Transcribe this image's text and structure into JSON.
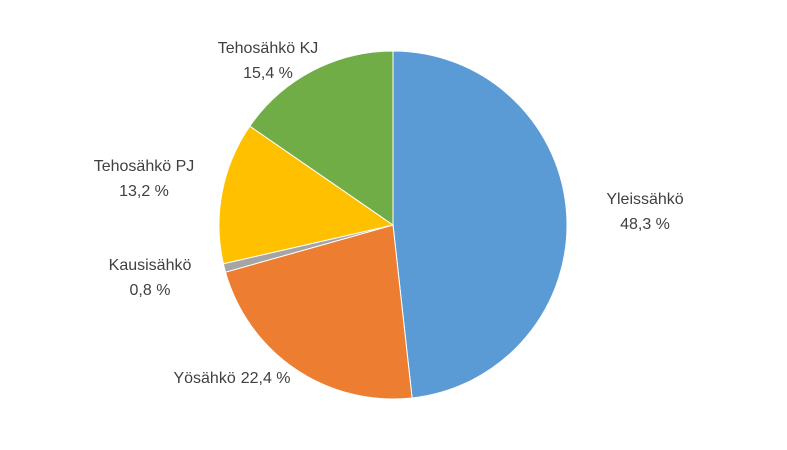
{
  "chart_data": {
    "type": "pie",
    "categories": [
      "Yleissähkö",
      "Yösähkö",
      "Kausisähkö",
      "Tehosähkö PJ",
      "Tehosähkö KJ"
    ],
    "values": [
      48.3,
      22.4,
      0.8,
      13.2,
      15.4
    ],
    "value_labels": [
      "48,3 %",
      "22,4 %",
      "0,8 %",
      "13,2 %",
      "15,4 %"
    ],
    "colors": [
      "#5b9bd5",
      "#ed7d31",
      "#a5a5a5",
      "#ffc000",
      "#70ad47"
    ]
  }
}
